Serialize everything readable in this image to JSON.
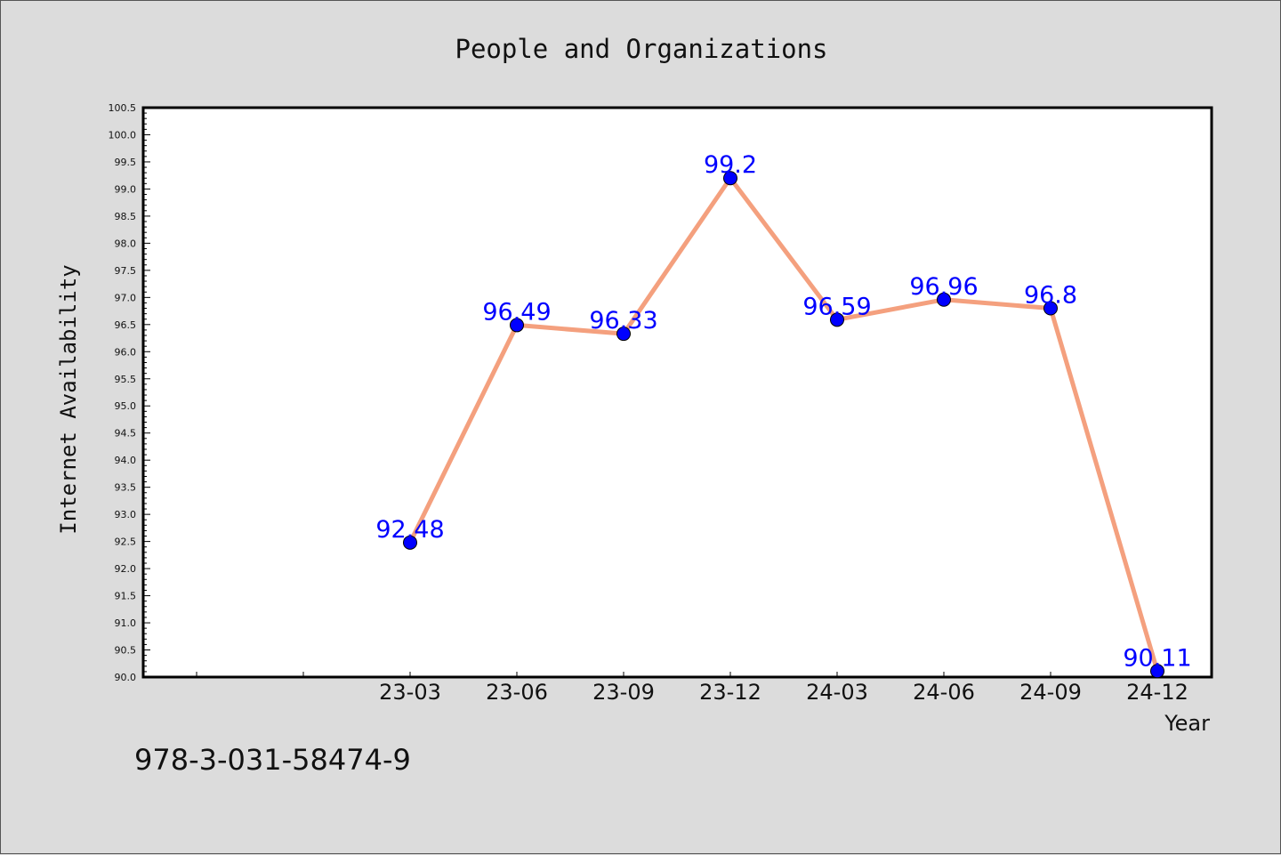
{
  "chart_data": {
    "type": "line",
    "title": "People and Organizations",
    "xlabel": "Year",
    "ylabel": "Internet Availability",
    "categories": [
      "23-03",
      "23-06",
      "23-09",
      "23-12",
      "24-03",
      "24-06",
      "24-09",
      "24-12"
    ],
    "series": [
      {
        "values": [
          92.48,
          96.49,
          96.33,
          99.2,
          96.59,
          96.96,
          96.8,
          90.11
        ]
      }
    ],
    "data_labels": [
      "92.48",
      "96.49",
      "96.33",
      "99.2",
      "96.59",
      "96.96",
      "96.8",
      "90.11"
    ],
    "ylim": [
      90.0,
      100.5
    ],
    "ytick_step": 0.5,
    "grid": false,
    "legend": "none",
    "colors": {
      "line": "#f4a07e",
      "marker": "#0000ff",
      "label": "#0000ff",
      "background": "#dcdcdc",
      "plot_area": "#ffffff"
    }
  },
  "footer": {
    "isbn": "978-3-031-58474-9"
  }
}
